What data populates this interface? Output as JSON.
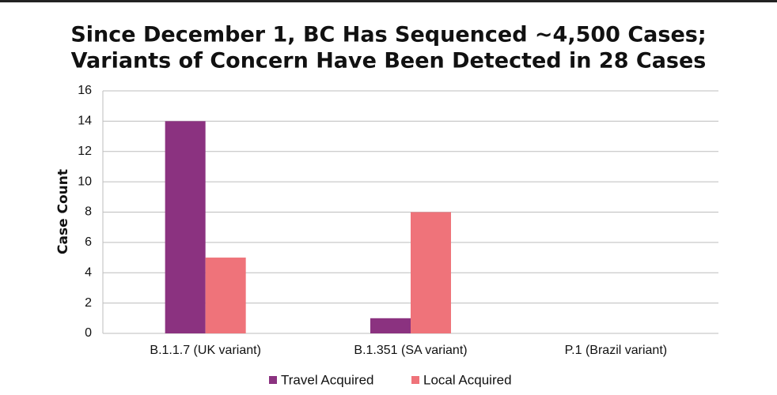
{
  "chart_data": {
    "type": "bar",
    "title": [
      "Since December 1, BC Has Sequenced ~4,500 Cases;",
      "Variants of Concern Have Been Detected in 28 Cases"
    ],
    "y_label": "Case Count",
    "categories": [
      "B.1.1.7 (UK variant)",
      "B.1.351 (SA variant)",
      "P.1 (Brazil variant)"
    ],
    "series": [
      {
        "name": "Travel Acquired",
        "color": "#8b3280",
        "values": [
          14,
          1,
          0
        ]
      },
      {
        "name": "Local Acquired",
        "color": "#ef737a",
        "values": [
          5,
          8,
          0
        ]
      }
    ],
    "ylim": [
      0,
      16
    ],
    "yticks": [
      0,
      2,
      4,
      6,
      8,
      10,
      12,
      14,
      16
    ],
    "grid": true,
    "legend": "bottom"
  }
}
